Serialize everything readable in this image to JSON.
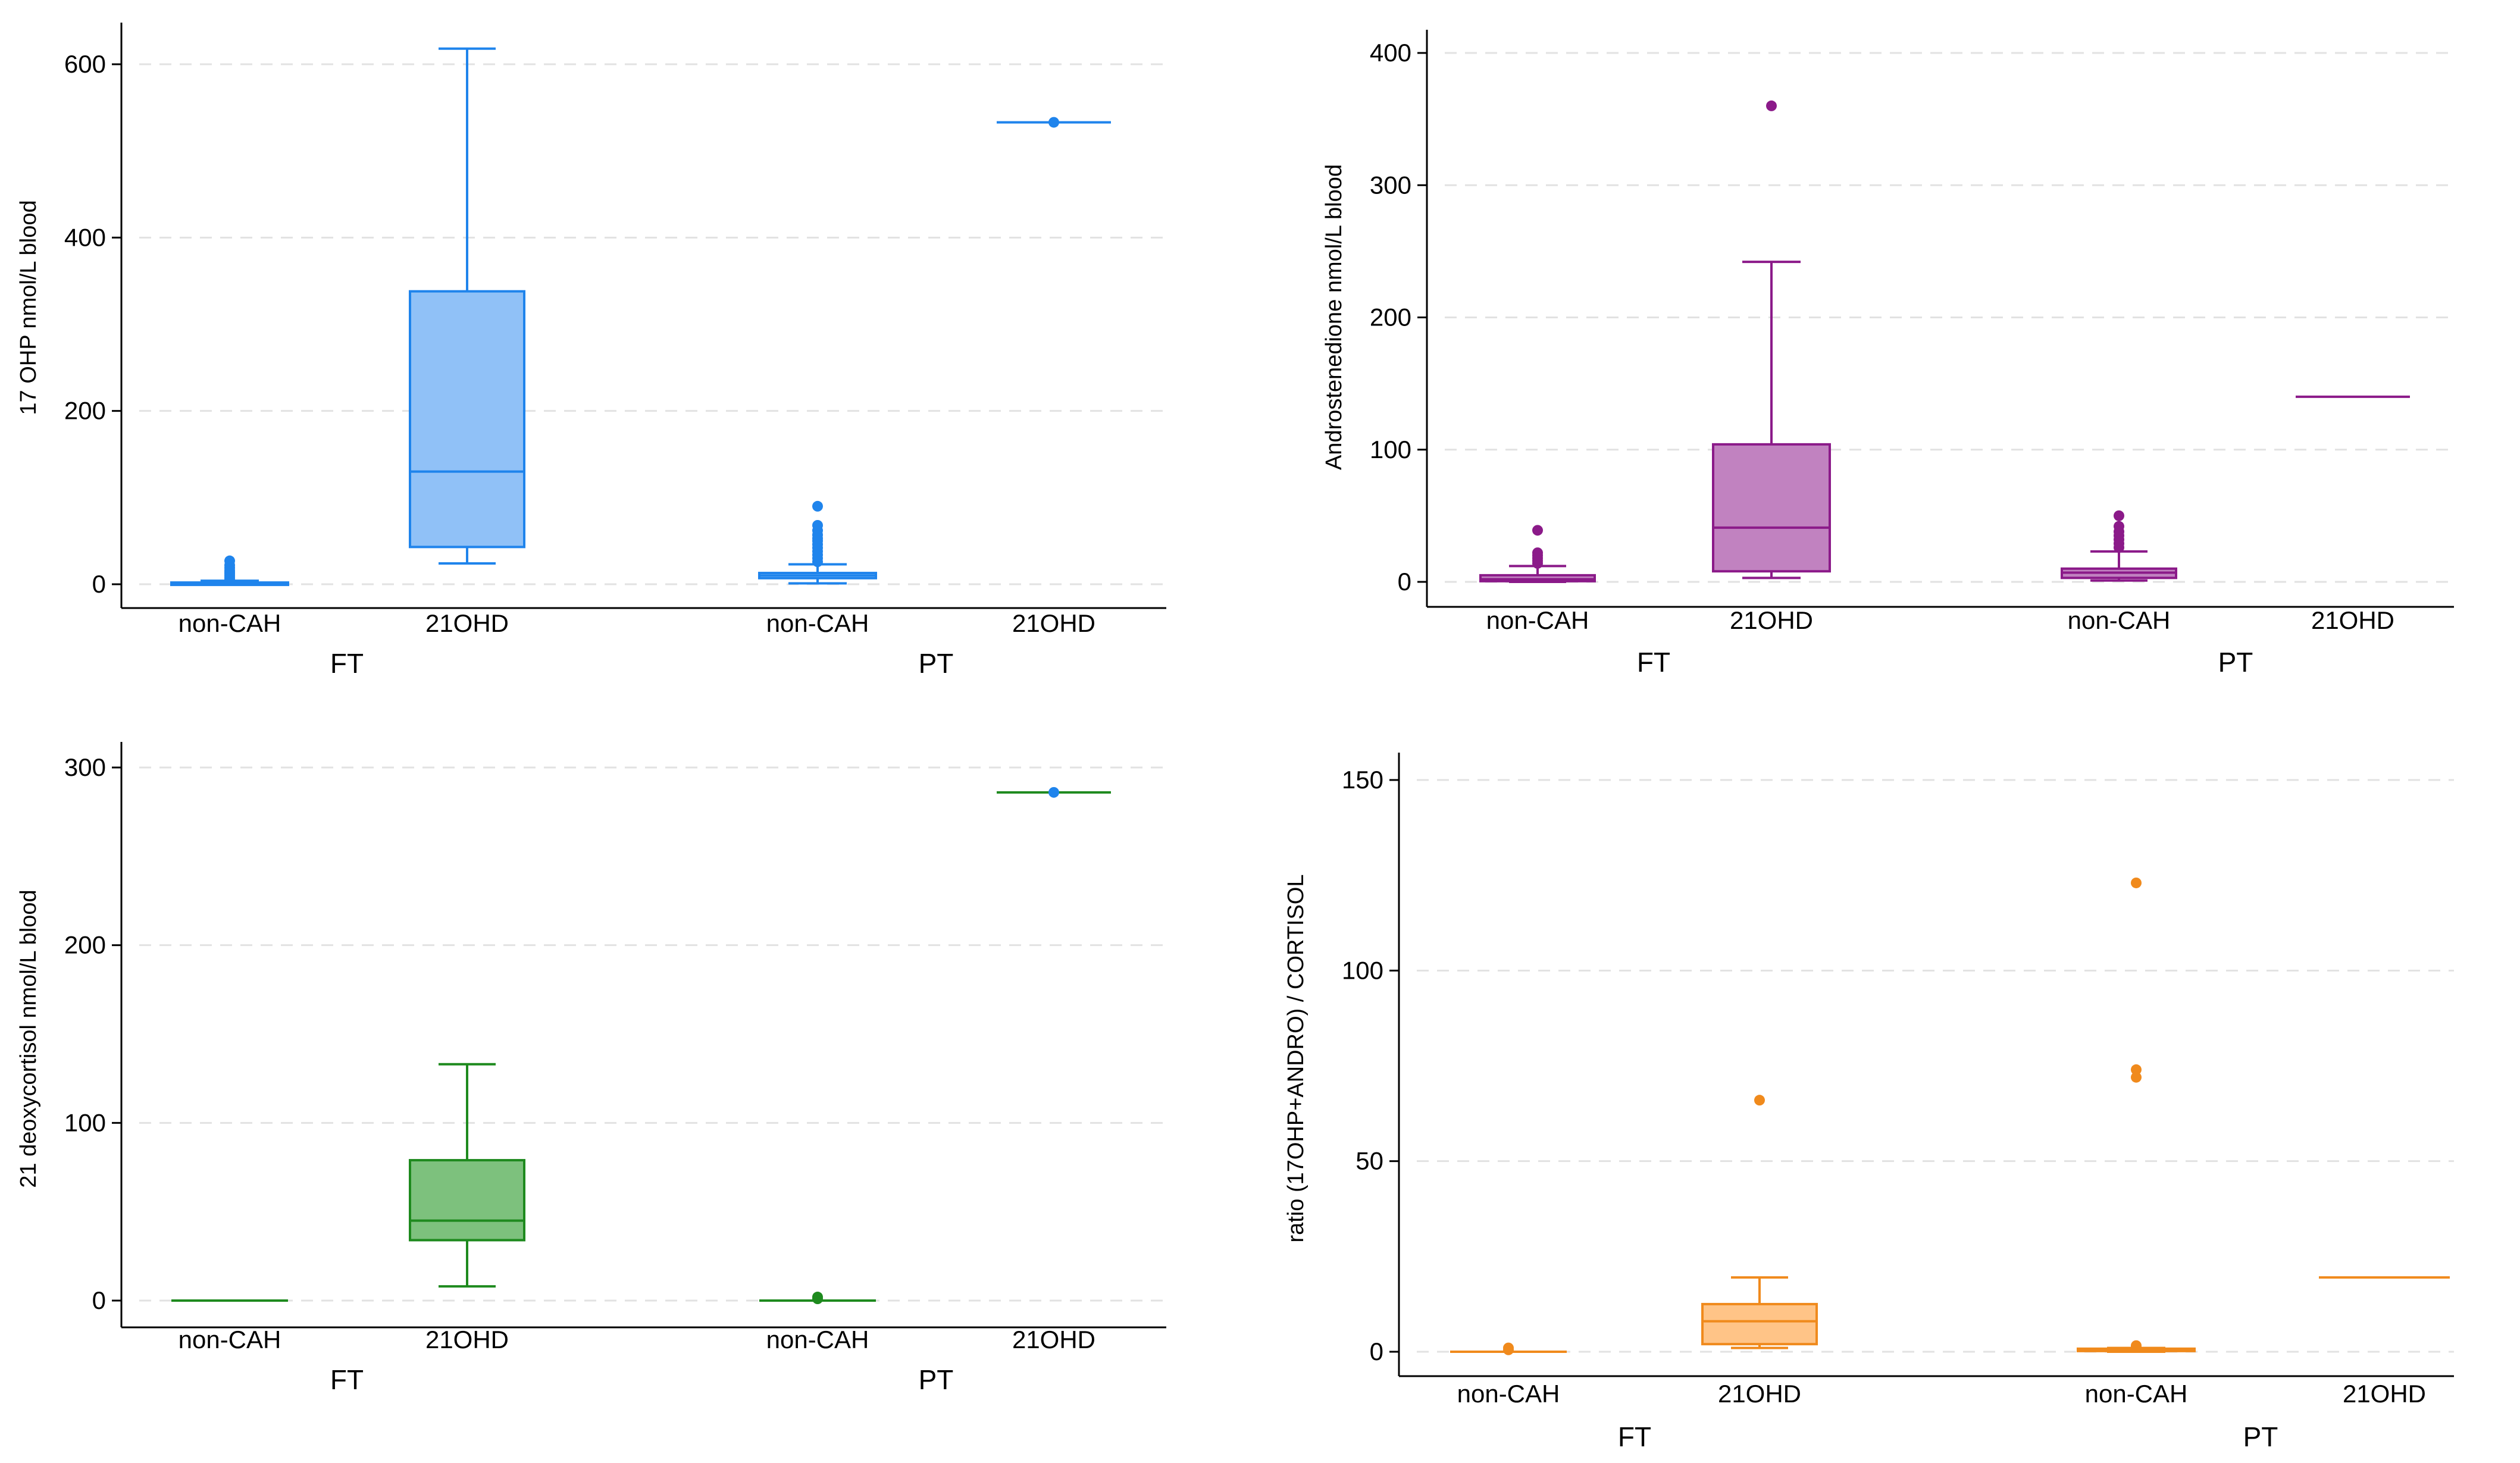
{
  "figure": {
    "panels": 4
  },
  "chart_data": [
    {
      "type": "box",
      "panel": "top-left",
      "ylabel": "17 OHP nmol/L blood",
      "ylim": [
        0,
        620
      ],
      "yticks": [
        0,
        200,
        400,
        600
      ],
      "grid": true,
      "color": "#1f84ec",
      "fill": "#90c1f7",
      "groups": [
        "FT",
        "PT"
      ],
      "categories": [
        "non-CAH",
        "21OHD",
        "non-CAH",
        "21OHD"
      ],
      "boxes": [
        {
          "group": "FT",
          "category": "non-CAH",
          "whisker_low": 0,
          "q1": 0.5,
          "median": 1,
          "q3": 2,
          "whisker_high": 4,
          "outliers": [
            6,
            8,
            10,
            12,
            14,
            16,
            19,
            22,
            27
          ]
        },
        {
          "group": "FT",
          "category": "21OHD",
          "whisker_low": 24,
          "q1": 43,
          "median": 130,
          "q3": 338,
          "whisker_high": 618,
          "outliers": []
        },
        {
          "group": "PT",
          "category": "non-CAH",
          "whisker_low": 1,
          "q1": 7,
          "median": 10,
          "q3": 13,
          "whisker_high": 23,
          "outliers": [
            26,
            30,
            34,
            38,
            42,
            46,
            50,
            53,
            57,
            62,
            68,
            90
          ]
        },
        {
          "group": "PT",
          "category": "21OHD",
          "whisker_low": 533,
          "q1": 533,
          "median": 533,
          "q3": 533,
          "whisker_high": 533,
          "outliers": [
            533
          ]
        }
      ]
    },
    {
      "type": "box",
      "panel": "top-right",
      "ylabel": "Androstenedione nmol/L blood",
      "ylim": [
        0,
        420
      ],
      "yticks": [
        0,
        100,
        200,
        300,
        400
      ],
      "grid": true,
      "color": "#8b1a89",
      "fill": "#c182c0",
      "groups": [
        "FT",
        "PT"
      ],
      "categories": [
        "non-CAH",
        "21OHD",
        "non-CAH",
        "21OHD"
      ],
      "boxes": [
        {
          "group": "FT",
          "category": "non-CAH",
          "whisker_low": 0,
          "q1": 0.5,
          "median": 2,
          "q3": 5,
          "whisker_high": 12,
          "outliers": [
            14,
            16,
            18,
            20,
            22,
            39
          ]
        },
        {
          "group": "FT",
          "category": "21OHD",
          "whisker_low": 3,
          "q1": 8,
          "median": 41,
          "q3": 104,
          "whisker_high": 242,
          "outliers": [
            360
          ]
        },
        {
          "group": "PT",
          "category": "non-CAH",
          "whisker_low": 1,
          "q1": 3,
          "median": 7,
          "q3": 10,
          "whisker_high": 23,
          "outliers": [
            26,
            29,
            32,
            35,
            38,
            42,
            50
          ]
        },
        {
          "group": "PT",
          "category": "21OHD",
          "whisker_low": 140,
          "q1": 140,
          "median": 140,
          "q3": 140,
          "whisker_high": 140,
          "outliers": []
        }
      ]
    },
    {
      "type": "box",
      "panel": "bottom-left",
      "ylabel": "21 deoxycortisol nmol/L blood",
      "ylim": [
        0,
        300
      ],
      "yticks": [
        0,
        100,
        200,
        300
      ],
      "grid": true,
      "color": "#1e8a1e",
      "fill": "#7dc17d",
      "groups": [
        "FT",
        "PT"
      ],
      "categories": [
        "non-CAH",
        "21OHD",
        "non-CAH",
        "21OHD"
      ],
      "boxes": [
        {
          "group": "FT",
          "category": "non-CAH",
          "whisker_low": 0,
          "q1": 0,
          "median": 0,
          "q3": 0,
          "whisker_high": 0,
          "outliers": []
        },
        {
          "group": "FT",
          "category": "21OHD",
          "whisker_low": 8,
          "q1": 34,
          "median": 45,
          "q3": 79,
          "whisker_high": 133,
          "outliers": []
        },
        {
          "group": "PT",
          "category": "non-CAH",
          "whisker_low": 0,
          "q1": 0,
          "median": 0,
          "q3": 0,
          "whisker_high": 0,
          "outliers": [
            1,
            2
          ]
        },
        {
          "group": "PT",
          "category": "21OHD",
          "whisker_low": 286,
          "q1": 286,
          "median": 286,
          "q3": 286,
          "whisker_high": 286,
          "outliers": [
            286
          ],
          "outlier_color": "#1f84ec"
        }
      ]
    },
    {
      "type": "box",
      "panel": "bottom-right",
      "ylabel": "ratio (17OHP+ANDRO) / CORTISOL",
      "ylim": [
        0,
        150
      ],
      "yticks": [
        0,
        50,
        100,
        150
      ],
      "grid": true,
      "color": "#f08a1c",
      "fill": "#ffc487",
      "groups": [
        "FT",
        "PT"
      ],
      "categories": [
        "non-CAH",
        "21OHD",
        "non-CAH",
        "21OHD"
      ],
      "boxes": [
        {
          "group": "FT",
          "category": "non-CAH",
          "whisker_low": 0,
          "q1": 0,
          "median": 0,
          "q3": 0,
          "whisker_high": 0,
          "outliers": [
            0.5,
            1
          ]
        },
        {
          "group": "FT",
          "category": "21OHD",
          "whisker_low": 1,
          "q1": 2,
          "median": 8,
          "q3": 12.5,
          "whisker_high": 19.5,
          "outliers": [
            66
          ]
        },
        {
          "group": "PT",
          "category": "non-CAH",
          "whisker_low": 0,
          "q1": 0.2,
          "median": 0.5,
          "q3": 0.8,
          "whisker_high": 1,
          "outliers": [
            1.2,
            1.6,
            72,
            74,
            123
          ]
        },
        {
          "group": "PT",
          "category": "21OHD",
          "whisker_low": 19.5,
          "q1": 19.5,
          "median": 19.5,
          "q3": 19.5,
          "whisker_high": 19.5,
          "outliers": []
        }
      ]
    }
  ]
}
